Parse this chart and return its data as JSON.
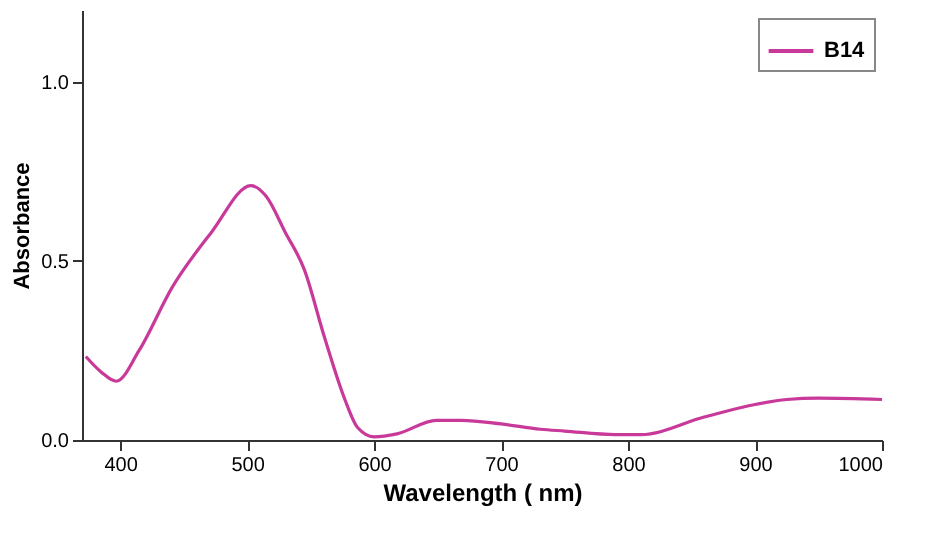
{
  "chart_data": {
    "type": "line",
    "xlabel": "Wavelength ( nm)",
    "ylabel": "Absorbance",
    "xlim": [
      370,
      1000
    ],
    "xticks": [
      400,
      500,
      600,
      700,
      800,
      900,
      1000
    ],
    "ylim": [
      0,
      1.2
    ],
    "yticks": [
      {
        "value": 0,
        "label": "0.0"
      },
      0.5,
      {
        "value": 1,
        "label": "1.0"
      }
    ],
    "grid": false,
    "legend": "top right",
    "marker": "none",
    "line_style": "solid",
    "series": [
      {
        "name": "B14",
        "color": "#c8399a",
        "x": [
          373,
          385,
          397,
          415,
          441,
          472,
          503,
          515,
          530,
          545,
          561,
          577,
          587,
          600,
          618,
          649,
          669,
          700,
          731,
          750,
          790,
          810,
          860,
          900,
          925,
          950,
          1000
        ],
        "values": [
          0.233,
          0.19,
          0.164,
          0.25,
          0.426,
          0.58,
          0.71,
          0.68,
          0.58,
          0.476,
          0.286,
          0.113,
          0.035,
          0.009,
          0.017,
          0.055,
          0.055,
          0.045,
          0.03,
          0.025,
          0.015,
          0.015,
          0.064,
          0.099,
          0.113,
          0.117,
          0.113
        ]
      }
    ]
  }
}
